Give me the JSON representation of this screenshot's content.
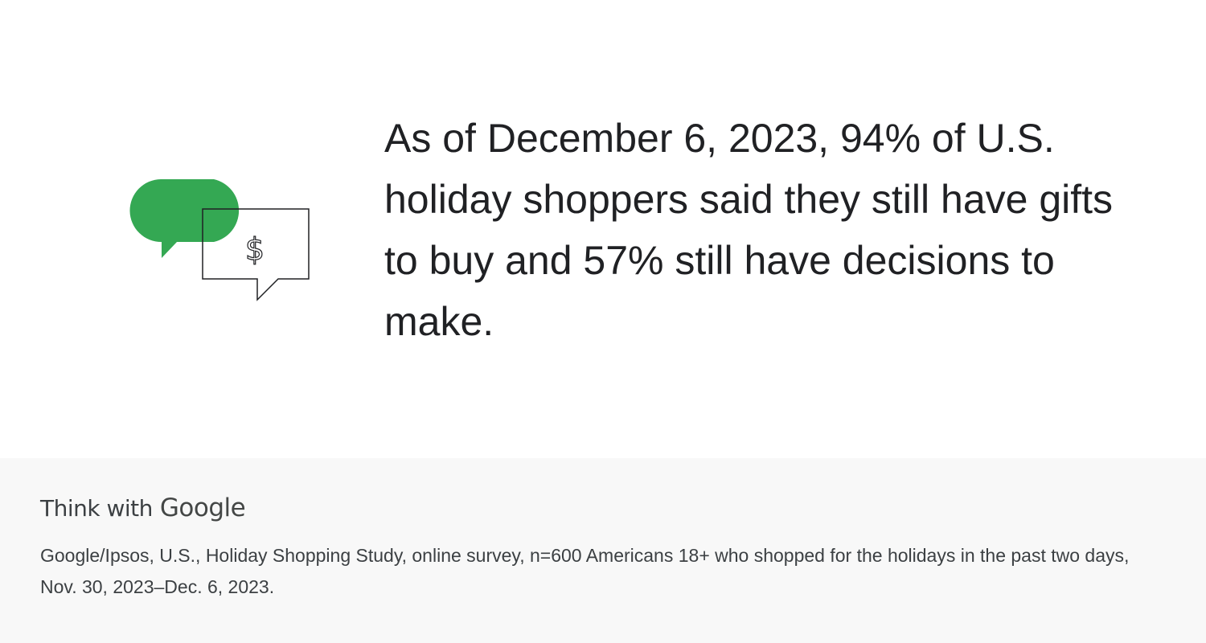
{
  "headline": "As of December 6, 2023, 94% of U.S. holiday shoppers said they still have gifts to buy and 57% still have decisions to make.",
  "illustration": {
    "icons": [
      "speech-bubble-icon",
      "dollar-speech-bubble-icon"
    ],
    "dollar_symbol": "$",
    "accent_color": "#34a853",
    "outline_color": "#202124"
  },
  "footer": {
    "brand_lead": "Think with",
    "brand_name": "Google",
    "source": "Google/Ipsos, U.S., Holiday Shopping Study, online survey, n=600 Americans 18+ who shopped for the holidays in the past two days, Nov. 30, 2023–Dec. 6, 2023.",
    "background_color": "#f8f8f8"
  }
}
